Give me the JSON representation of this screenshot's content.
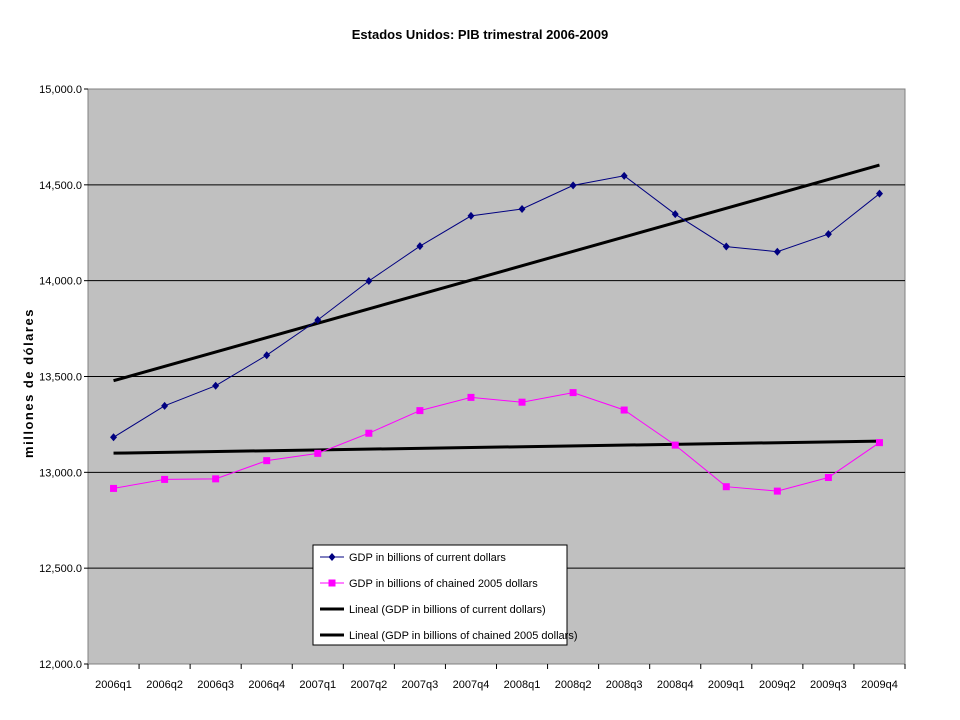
{
  "chart_data": {
    "type": "line",
    "title": "Estados Unidos: PIB trimestral 2006-2009",
    "xlabel": "",
    "ylabel": "millones de dólares",
    "categories": [
      "2006q1",
      "2006q2",
      "2006q3",
      "2006q4",
      "2007q1",
      "2007q2",
      "2007q3",
      "2007q4",
      "2008q1",
      "2008q2",
      "2008q3",
      "2008q4",
      "2009q1",
      "2009q2",
      "2009q3",
      "2009q4"
    ],
    "ylim": [
      12000,
      15000
    ],
    "yticks": [
      12000,
      12500,
      13000,
      13500,
      14000,
      14500,
      15000
    ],
    "ytick_labels": [
      "12,000.0",
      "12,500.0",
      "13,000.0",
      "13,500.0",
      "14,000.0",
      "14,500.0",
      "15,000.0"
    ],
    "grid": true,
    "legend_position": "bottom-center",
    "plot_background": "#c0c0c0",
    "series": [
      {
        "name": "GDP in billions of current dollars",
        "color": "#000080",
        "marker": "diamond",
        "values": [
          13183,
          13347,
          13452,
          13611,
          13795,
          13998,
          14180,
          14338,
          14374,
          14497,
          14547,
          14347,
          14178,
          14151,
          14243,
          14454
        ]
      },
      {
        "name": "GDP in billions of chained 2005 dollars",
        "color": "#ff00ff",
        "marker": "square",
        "values": [
          12916,
          12963,
          12966,
          13061,
          13099,
          13204,
          13322,
          13391,
          13366,
          13416,
          13325,
          13142,
          12925,
          12902,
          12973,
          13155
        ]
      }
    ],
    "trendlines": [
      {
        "name": "Lineal (GDP in billions of current dollars)",
        "color": "#000000",
        "start": 13478,
        "end": 14603
      },
      {
        "name": "Lineal (GDP in billions of chained 2005 dollars)",
        "color": "#000000",
        "start": 13100,
        "end": 13163
      }
    ]
  }
}
